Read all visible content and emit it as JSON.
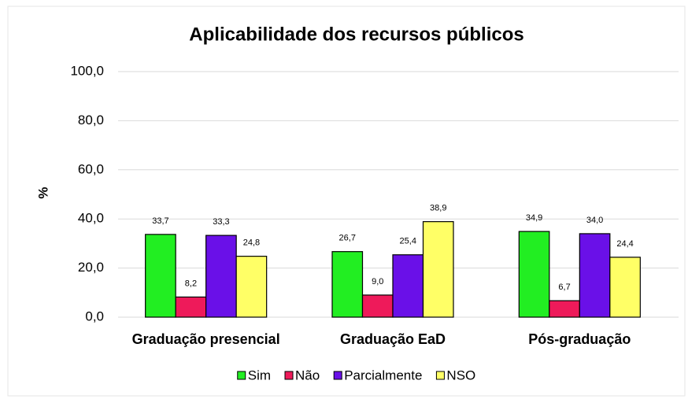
{
  "chart_data": {
    "type": "bar",
    "title": "Aplicabilidade dos recursos públicos",
    "ylabel": "%",
    "categories": [
      "Graduação presencial",
      "Graduação EaD",
      "Pós-graduação"
    ],
    "series": [
      {
        "name": "Sim",
        "color": "#22ee22",
        "values": [
          33.7,
          26.7,
          34.9
        ],
        "value_labels": [
          "33,7",
          "26,7",
          "34,9"
        ]
      },
      {
        "name": "Não",
        "color": "#ee1a5a",
        "values": [
          8.2,
          9.0,
          6.7
        ],
        "value_labels": [
          "8,2",
          "9,0",
          "6,7"
        ]
      },
      {
        "name": "Parcialmente",
        "color": "#6a10e8",
        "values": [
          33.3,
          25.4,
          34.0
        ],
        "value_labels": [
          "33,3",
          "25,4",
          "34,0"
        ]
      },
      {
        "name": "NSO",
        "color": "#ffff66",
        "values": [
          24.8,
          38.9,
          24.4
        ],
        "value_labels": [
          "24,8",
          "38,9",
          "24,4"
        ]
      }
    ],
    "ylim": [
      0,
      100
    ],
    "yticks": [
      {
        "value": 0,
        "label": "0,0"
      },
      {
        "value": 20,
        "label": "20,0"
      },
      {
        "value": 40,
        "label": "40,0"
      },
      {
        "value": 60,
        "label": "60,0"
      },
      {
        "value": 80,
        "label": "80,0"
      },
      {
        "value": 100,
        "label": "100,0"
      }
    ],
    "grid": true,
    "legend": "bottom"
  }
}
